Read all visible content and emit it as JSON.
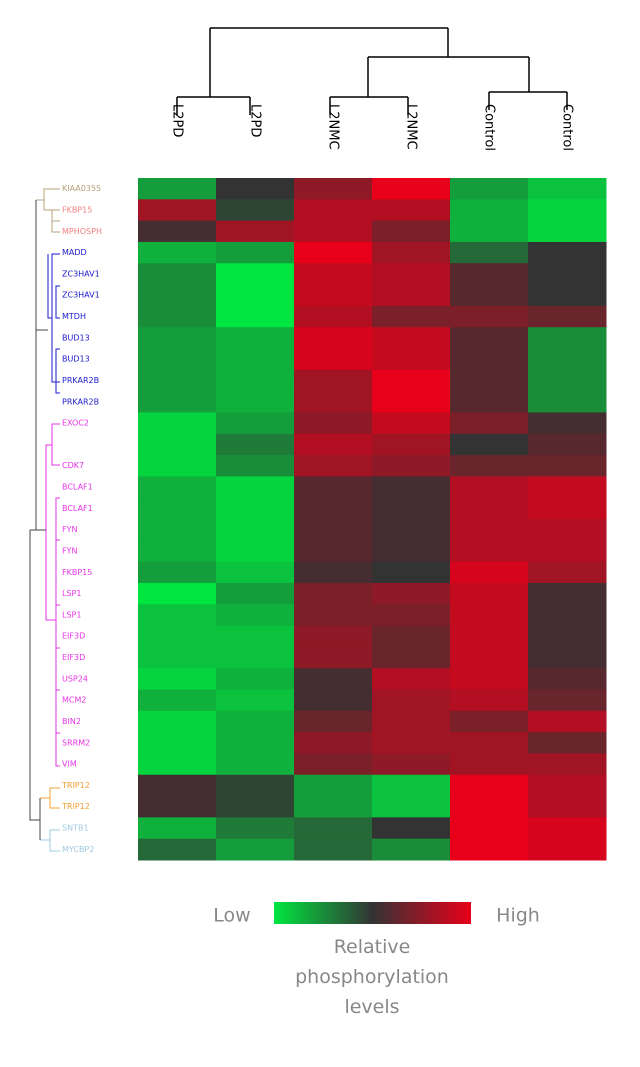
{
  "chart_data": {
    "type": "heatmap",
    "columns": [
      "L2PD",
      "L2PD",
      "L2NMC",
      "L2NMC",
      "Control",
      "Control"
    ],
    "rows": [
      "KIAA0355",
      "FKBP15",
      "MPHOSPH",
      "MADD",
      "ZC3HAV1",
      "ZC3HAV1",
      "MTDH",
      "BUD13",
      "BUD13",
      "PRKAR2B",
      "PRKAR2B",
      "EXOC2",
      null,
      "CDK7",
      "BCLAF1",
      "BCLAF1",
      "FYN",
      "FYN",
      "FKBP15",
      "LSP1",
      "LSP1",
      "EIF3D",
      "EIF3D",
      "USP24",
      "MCM2",
      "BIN2",
      "SRRM2",
      "VIM",
      "TRIP12",
      "TRIP12",
      "SNTB1",
      "MYCBP2"
    ],
    "row_label_colors": [
      "#b5a27a",
      "#f08080",
      "#f08080",
      "#1a1acc",
      "#1a1acc",
      "#1a1acc",
      "#1a1acc",
      "#1a1acc",
      "#1a1acc",
      "#1a1acc",
      "#1a1acc",
      "#e633e6",
      "#e633e6",
      "#e633e6",
      "#e633e6",
      "#e633e6",
      "#e633e6",
      "#e633e6",
      "#e633e6",
      "#e633e6",
      "#e633e6",
      "#e633e6",
      "#e633e6",
      "#e633e6",
      "#e633e6",
      "#e633e6",
      "#e633e6",
      "#e633e6",
      "#f0a030",
      "#f0a030",
      "#9ecae1",
      "#9ecae1"
    ],
    "values": [
      [
        -0.6,
        0,
        0.5,
        1,
        -0.6,
        -0.8
      ],
      [
        0.6,
        -0.1,
        0.7,
        0.7,
        -0.7,
        -0.9
      ],
      [
        0.1,
        0.6,
        0.7,
        0.4,
        -0.7,
        -0.9
      ],
      [
        -0.7,
        -0.6,
        1,
        0.6,
        -0.3,
        0
      ],
      [
        -0.5,
        -1,
        0.8,
        0.7,
        0.2,
        0
      ],
      [
        -0.5,
        -1,
        0.8,
        0.7,
        0.2,
        0
      ],
      [
        -0.5,
        -1,
        0.7,
        0.4,
        0.4,
        0.3
      ],
      [
        -0.6,
        -0.7,
        0.9,
        0.8,
        0.2,
        -0.5
      ],
      [
        -0.6,
        -0.7,
        0.9,
        0.8,
        0.2,
        -0.5
      ],
      [
        -0.6,
        -0.7,
        0.6,
        1,
        0.2,
        -0.5
      ],
      [
        -0.6,
        -0.7,
        0.6,
        1,
        0.2,
        -0.5
      ],
      [
        -0.9,
        -0.6,
        0.5,
        0.8,
        0.4,
        0.1
      ],
      [
        -0.9,
        -0.4,
        0.7,
        0.6,
        0,
        0.2
      ],
      [
        -0.9,
        -0.5,
        0.6,
        0.5,
        0.3,
        0.3
      ],
      [
        -0.7,
        -0.9,
        0.2,
        0.1,
        0.7,
        0.8
      ],
      [
        -0.7,
        -0.9,
        0.2,
        0.1,
        0.7,
        0.8
      ],
      [
        -0.7,
        -0.9,
        0.2,
        0.1,
        0.7,
        0.7
      ],
      [
        -0.7,
        -0.9,
        0.2,
        0.1,
        0.7,
        0.7
      ],
      [
        -0.6,
        -0.8,
        0.1,
        0,
        0.9,
        0.6
      ],
      [
        -1,
        -0.6,
        0.4,
        0.5,
        0.8,
        0.1
      ],
      [
        -0.8,
        -0.7,
        0.4,
        0.4,
        0.8,
        0.1
      ],
      [
        -0.8,
        -0.8,
        0.5,
        0.3,
        0.8,
        0.1
      ],
      [
        -0.8,
        -0.8,
        0.5,
        0.3,
        0.8,
        0.1
      ],
      [
        -0.9,
        -0.7,
        0.1,
        0.7,
        0.8,
        0.2
      ],
      [
        -0.7,
        -0.8,
        0.1,
        0.6,
        0.7,
        0.3
      ],
      [
        -0.9,
        -0.7,
        0.3,
        0.6,
        0.4,
        0.7
      ],
      [
        -0.9,
        -0.7,
        0.5,
        0.6,
        0.6,
        0.3
      ],
      [
        -0.9,
        -0.7,
        0.4,
        0.5,
        0.6,
        0.6
      ],
      [
        0.1,
        -0.1,
        -0.6,
        -0.8,
        1,
        0.7
      ],
      [
        0.1,
        -0.1,
        -0.6,
        -0.8,
        1,
        0.7
      ],
      [
        -0.7,
        -0.4,
        -0.3,
        0,
        1,
        0.9
      ],
      [
        -0.3,
        -0.6,
        -0.3,
        -0.5,
        1,
        0.9
      ]
    ],
    "zlim": [
      -1,
      1
    ],
    "colors": [
      "#00e640",
      "#333333",
      "#e8001a"
    ],
    "legend_low": "Low",
    "legend_high": "High",
    "legend_title": "Relative phosphorylation levels"
  }
}
